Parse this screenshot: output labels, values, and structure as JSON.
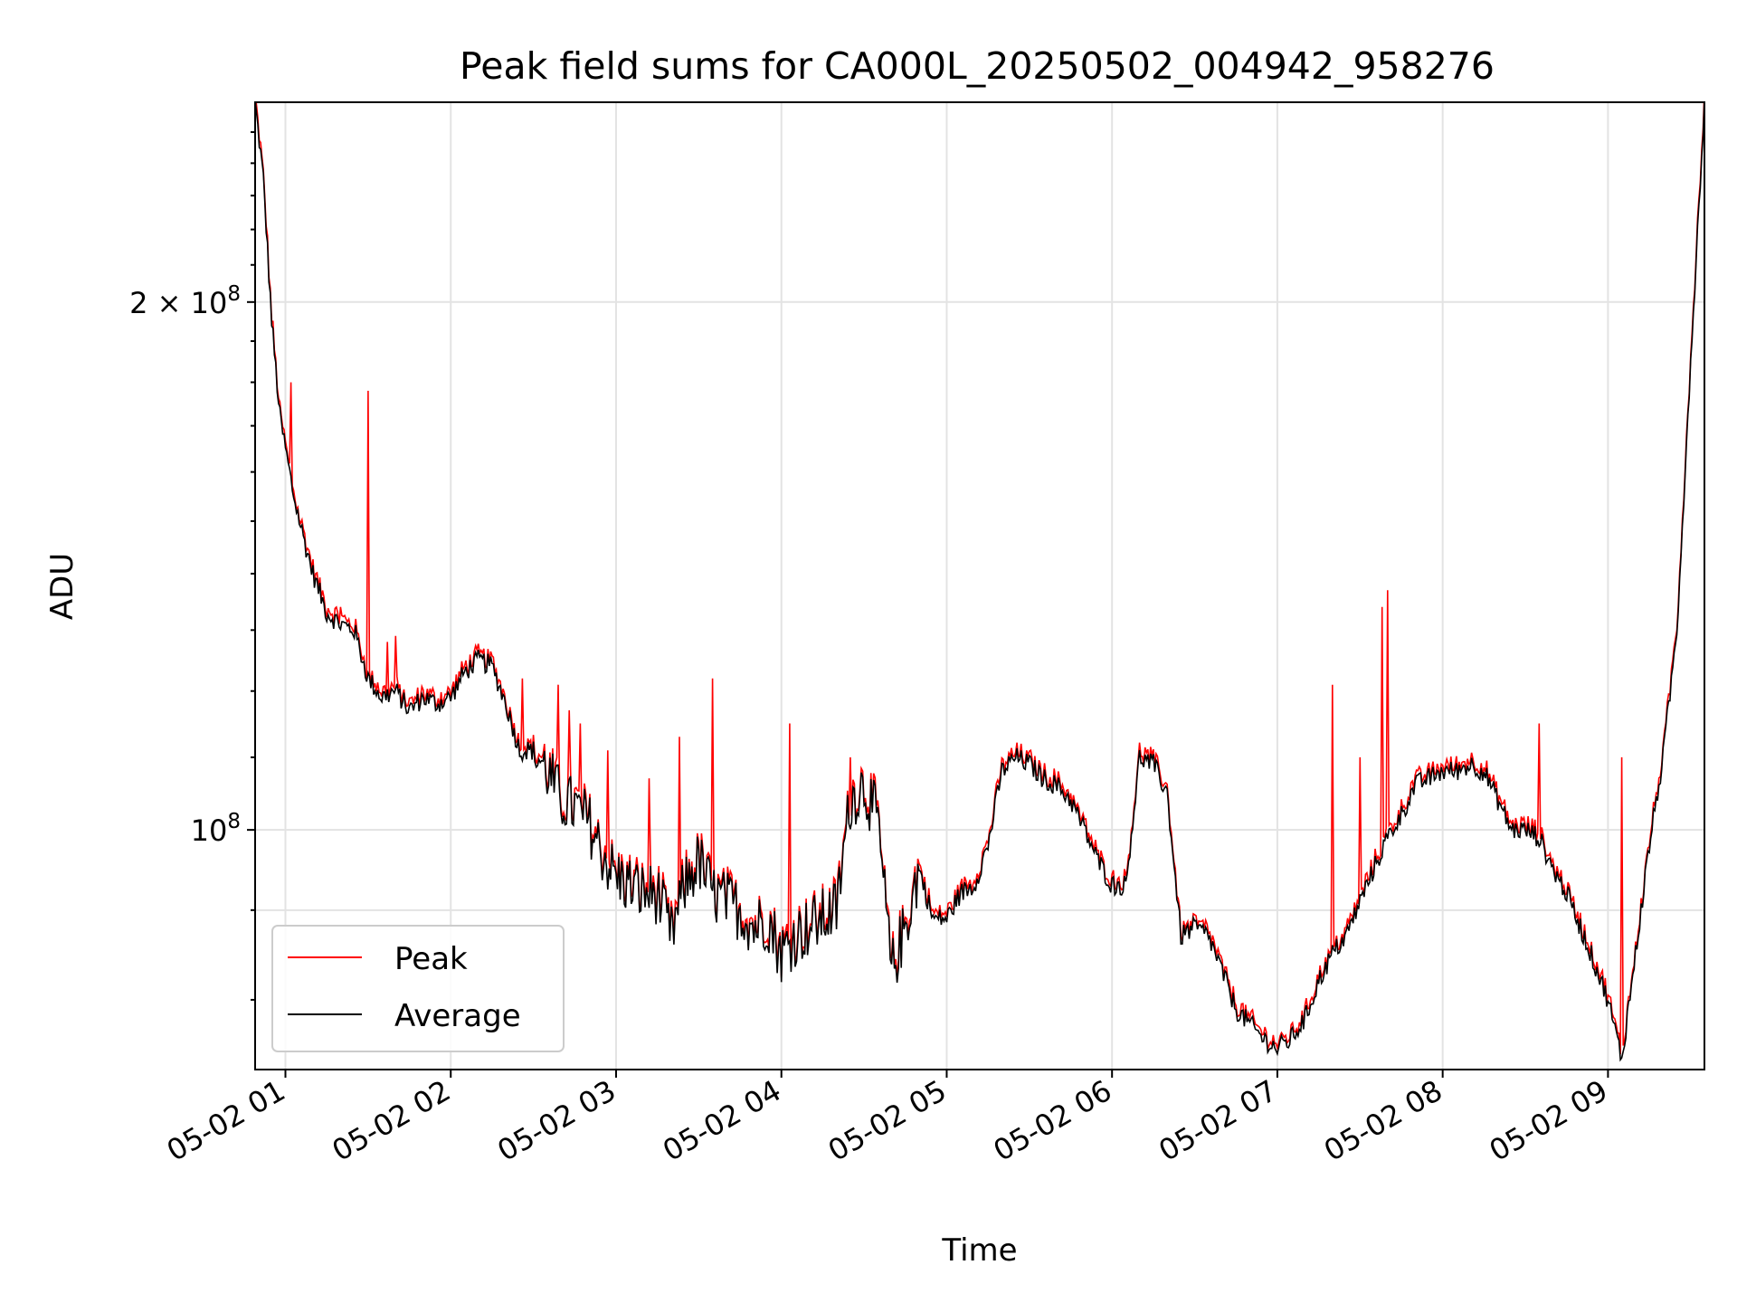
{
  "chart_data": {
    "type": "line",
    "title": "Peak field sums for CA000L_20250502_004942_958276",
    "xlabel": "Time",
    "ylabel": "ADU",
    "yscale": "log",
    "xlim": [
      "05-02 00:49",
      "05-02 09:35"
    ],
    "ylim": [
      73000000.0,
      260000000.0
    ],
    "grid": true,
    "legend_position": "lower-left",
    "x_ticks": [
      "05-02 01",
      "05-02 02",
      "05-02 03",
      "05-02 04",
      "05-02 05",
      "05-02 06",
      "05-02 07",
      "05-02 08",
      "05-02 09"
    ],
    "y_ticks": [
      {
        "value": 100000000,
        "base": "10",
        "exp": "8",
        "coef": ""
      },
      {
        "value": 200000000,
        "base": "10",
        "exp": "8",
        "coef": "2 × "
      }
    ],
    "series": [
      {
        "name": "Peak",
        "color": "#ff0000"
      },
      {
        "name": "Average",
        "color": "#000000"
      }
    ],
    "x": [
      "00:49",
      "00:52",
      "00:55",
      "00:58",
      "01:00",
      "01:03",
      "01:06",
      "01:10",
      "01:15",
      "01:20",
      "01:25",
      "01:30",
      "01:35",
      "01:40",
      "01:45",
      "01:50",
      "01:55",
      "02:00",
      "02:05",
      "02:10",
      "02:15",
      "02:20",
      "02:25",
      "02:30",
      "02:35",
      "02:40",
      "02:45",
      "02:50",
      "02:55",
      "03:00",
      "03:05",
      "03:10",
      "03:15",
      "03:20",
      "03:25",
      "03:30",
      "03:35",
      "03:40",
      "03:45",
      "03:50",
      "03:55",
      "04:00",
      "04:05",
      "04:10",
      "04:15",
      "04:20",
      "04:25",
      "04:30",
      "04:35",
      "04:40",
      "04:45",
      "04:50",
      "04:55",
      "05:00",
      "05:05",
      "05:10",
      "05:15",
      "05:20",
      "05:25",
      "05:30",
      "05:35",
      "05:40",
      "05:45",
      "05:50",
      "05:55",
      "06:00",
      "06:05",
      "06:10",
      "06:15",
      "06:20",
      "06:25",
      "06:30",
      "06:35",
      "06:40",
      "06:45",
      "06:50",
      "06:55",
      "07:00",
      "07:05",
      "07:10",
      "07:15",
      "07:20",
      "07:25",
      "07:30",
      "07:35",
      "07:40",
      "07:45",
      "07:50",
      "07:55",
      "08:00",
      "08:05",
      "08:10",
      "08:15",
      "08:20",
      "08:25",
      "08:30",
      "08:35",
      "08:40",
      "08:45",
      "08:50",
      "08:55",
      "09:00",
      "09:05",
      "09:10",
      "09:15",
      "09:20",
      "09:25",
      "09:30",
      "09:35"
    ],
    "average": [
      260000000.0,
      235000000.0,
      195000000.0,
      172000000.0,
      165000000.0,
      155000000.0,
      148000000.0,
      140000000.0,
      133000000.0,
      131000000.0,
      130000000.0,
      122000000.0,
      119000000.0,
      120000000.0,
      117000000.0,
      119000000.0,
      118000000.0,
      119000000.0,
      123000000.0,
      125000000.0,
      124000000.0,
      118000000.0,
      111000000.0,
      111000000.0,
      108000000.0,
      104000000.0,
      103000000.0,
      101000000.0,
      97000000.0,
      94000000.0,
      93000000.0,
      92000000.0,
      92000000.0,
      87000000.0,
      93000000.0,
      96000000.0,
      92000000.0,
      91000000.0,
      90000000.0,
      88000000.0,
      89000000.0,
      85000000.0,
      87000000.0,
      88000000.0,
      89000000.0,
      90000000.0,
      104000000.0,
      106000000.0,
      101000000.0,
      83000000.0,
      88000000.0,
      95000000.0,
      89000000.0,
      89000000.0,
      92000000.0,
      93000000.0,
      98000000.0,
      108000000.0,
      110000000.0,
      109000000.0,
      107000000.0,
      106000000.0,
      104000000.0,
      100000000.0,
      96000000.0,
      93000000.0,
      93000000.0,
      110000000.0,
      109000000.0,
      105000000.0,
      87000000.0,
      88000000.0,
      87000000.0,
      83000000.0,
      79000000.0,
      77500000.0,
      76000000.0,
      75000000.0,
      76000000.0,
      78000000.0,
      82000000.0,
      85000000.0,
      87000000.0,
      91000000.0,
      95000000.0,
      99000000.0,
      102000000.0,
      106000000.0,
      107000000.0,
      108000000.0,
      108000000.0,
      109000000.0,
      108000000.0,
      104000000.0,
      100000000.0,
      100000000.0,
      99000000.0,
      95000000.0,
      92000000.0,
      88000000.0,
      84000000.0,
      80000000.0,
      74000000.0,
      85000000.0,
      98000000.0,
      110000000.0,
      130000000.0,
      185000000.0,
      260000000.0
    ],
    "peak_spikes": [
      {
        "x": "01:02",
        "y": 180000000.0
      },
      {
        "x": "01:20",
        "y": 134000000.0
      },
      {
        "x": "01:30",
        "y": 178000000.0
      },
      {
        "x": "01:37",
        "y": 128000000.0
      },
      {
        "x": "01:40",
        "y": 129000000.0
      },
      {
        "x": "02:26",
        "y": 122000000.0
      },
      {
        "x": "02:39",
        "y": 121000000.0
      },
      {
        "x": "02:43",
        "y": 117000000.0
      },
      {
        "x": "02:47",
        "y": 115000000.0
      },
      {
        "x": "02:57",
        "y": 111000000.0
      },
      {
        "x": "03:12",
        "y": 107000000.0
      },
      {
        "x": "03:23",
        "y": 113000000.0
      },
      {
        "x": "03:35",
        "y": 122000000.0
      },
      {
        "x": "04:03",
        "y": 115000000.0
      },
      {
        "x": "04:25",
        "y": 110000000.0
      },
      {
        "x": "07:20",
        "y": 121000000.0
      },
      {
        "x": "07:30",
        "y": 110000000.0
      },
      {
        "x": "07:38",
        "y": 134000000.0
      },
      {
        "x": "07:40",
        "y": 137000000.0
      },
      {
        "x": "08:35",
        "y": 115000000.0
      },
      {
        "x": "09:05",
        "y": 110000000.0
      }
    ]
  },
  "legend": {
    "peak_label": "Peak",
    "average_label": "Average"
  }
}
